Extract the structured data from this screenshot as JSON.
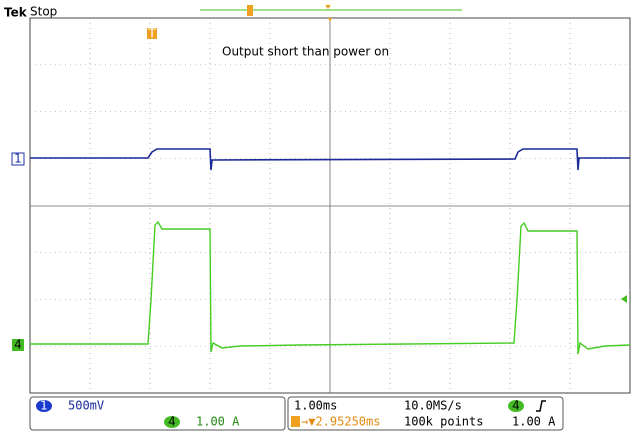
{
  "header": {
    "brand": "Tek",
    "state": "Stop"
  },
  "annotation": "Output short than power on",
  "markers": {
    "ch1": "1",
    "ch4": "4",
    "trigger": "T"
  },
  "status": {
    "ch1_number": "1",
    "ch1_scale": "500mV",
    "ch4_number": "4",
    "ch4_scale": "1.00 A",
    "timebase": "1.00ms",
    "sample_rate": "10.0MS/s",
    "delay": "→▼2.95250ms",
    "record_length": "100k points",
    "trigger_source": "4",
    "trigger_level": "1.00 A"
  }
}
